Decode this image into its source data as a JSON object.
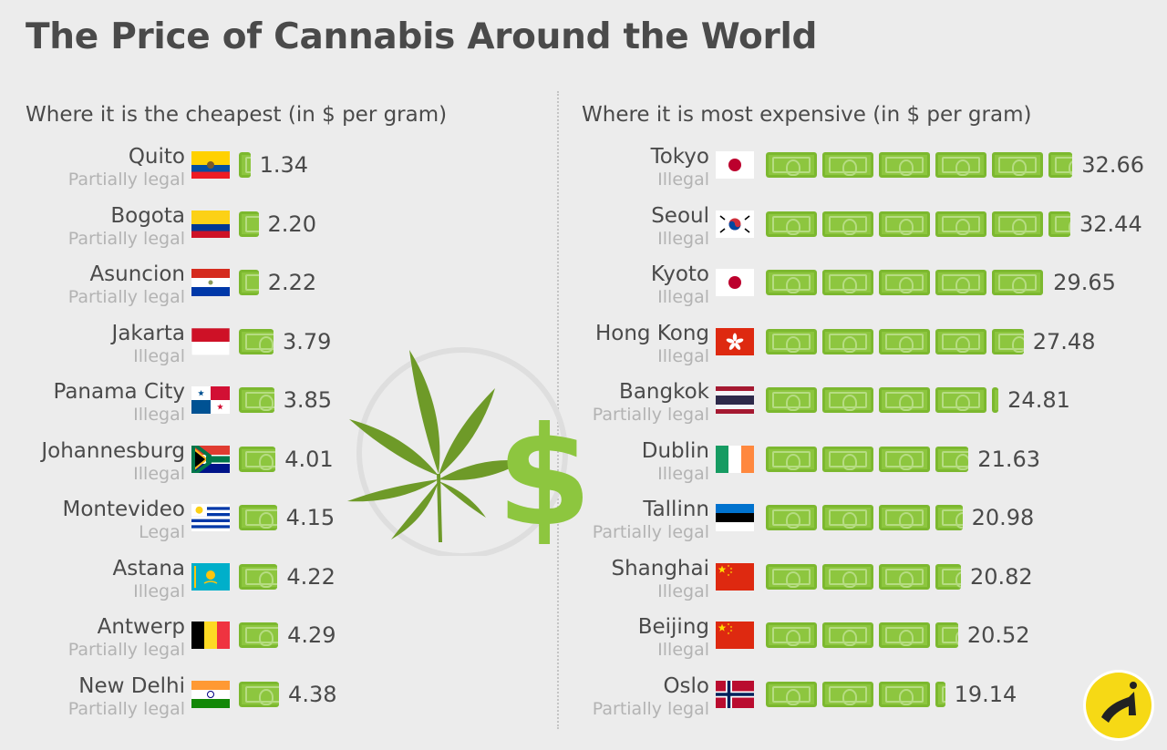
{
  "title": "The Price of Cannabis Around the World",
  "chart_data": [
    {
      "type": "bar",
      "title": "Where it is the cheapest (in $ per gram)",
      "categories": [
        "Quito",
        "Bogota",
        "Asuncion",
        "Jakarta",
        "Panama City",
        "Johannesburg",
        "Montevideo",
        "Astana",
        "Antwerp",
        "New Delhi"
      ],
      "status": [
        "Partially legal",
        "Partially legal",
        "Partially legal",
        "Illegal",
        "Illegal",
        "Illegal",
        "Legal",
        "Illegal",
        "Partially legal",
        "Partially legal"
      ],
      "flags": [
        "ecuador",
        "colombia",
        "paraguay",
        "indonesia",
        "panama",
        "south-africa",
        "uruguay",
        "kazakhstan",
        "belgium",
        "india"
      ],
      "values": [
        1.34,
        2.2,
        2.22,
        3.79,
        3.85,
        4.01,
        4.15,
        4.22,
        4.29,
        4.38
      ],
      "labels": [
        "1.34",
        "2.20",
        "2.22",
        "3.79",
        "3.85",
        "4.01",
        "4.15",
        "4.22",
        "4.29",
        "4.38"
      ]
    },
    {
      "type": "bar",
      "title": "Where it is most expensive (in $ per gram)",
      "categories": [
        "Tokyo",
        "Seoul",
        "Kyoto",
        "Hong Kong",
        "Bangkok",
        "Dublin",
        "Tallinn",
        "Shanghai",
        "Beijing",
        "Oslo"
      ],
      "status": [
        "Illegal",
        "Illegal",
        "Illegal",
        "Illegal",
        "Partially legal",
        "Illegal",
        "Partially legal",
        "Illegal",
        "Illegal",
        "Partially legal"
      ],
      "flags": [
        "japan",
        "south-korea",
        "japan",
        "hong-kong",
        "thailand",
        "ireland",
        "estonia",
        "china",
        "china",
        "norway"
      ],
      "values": [
        32.66,
        32.44,
        29.65,
        27.48,
        24.81,
        21.63,
        20.98,
        20.82,
        20.52,
        19.14
      ],
      "labels": [
        "32.66",
        "32.44",
        "29.65",
        "27.48",
        "24.81",
        "21.63",
        "20.98",
        "20.82",
        "20.52",
        "19.14"
      ]
    }
  ],
  "colors": {
    "note_fill": "#8dc63f",
    "note_border": "#7cb82f",
    "leaf": "#6e9a28",
    "dollar": "#8dc63f",
    "logo_yellow": "#f6d915"
  },
  "icons": [
    "cannabis-leaf-icon",
    "dollar-sign-icon",
    "banknote-icon",
    "logo-icon"
  ]
}
